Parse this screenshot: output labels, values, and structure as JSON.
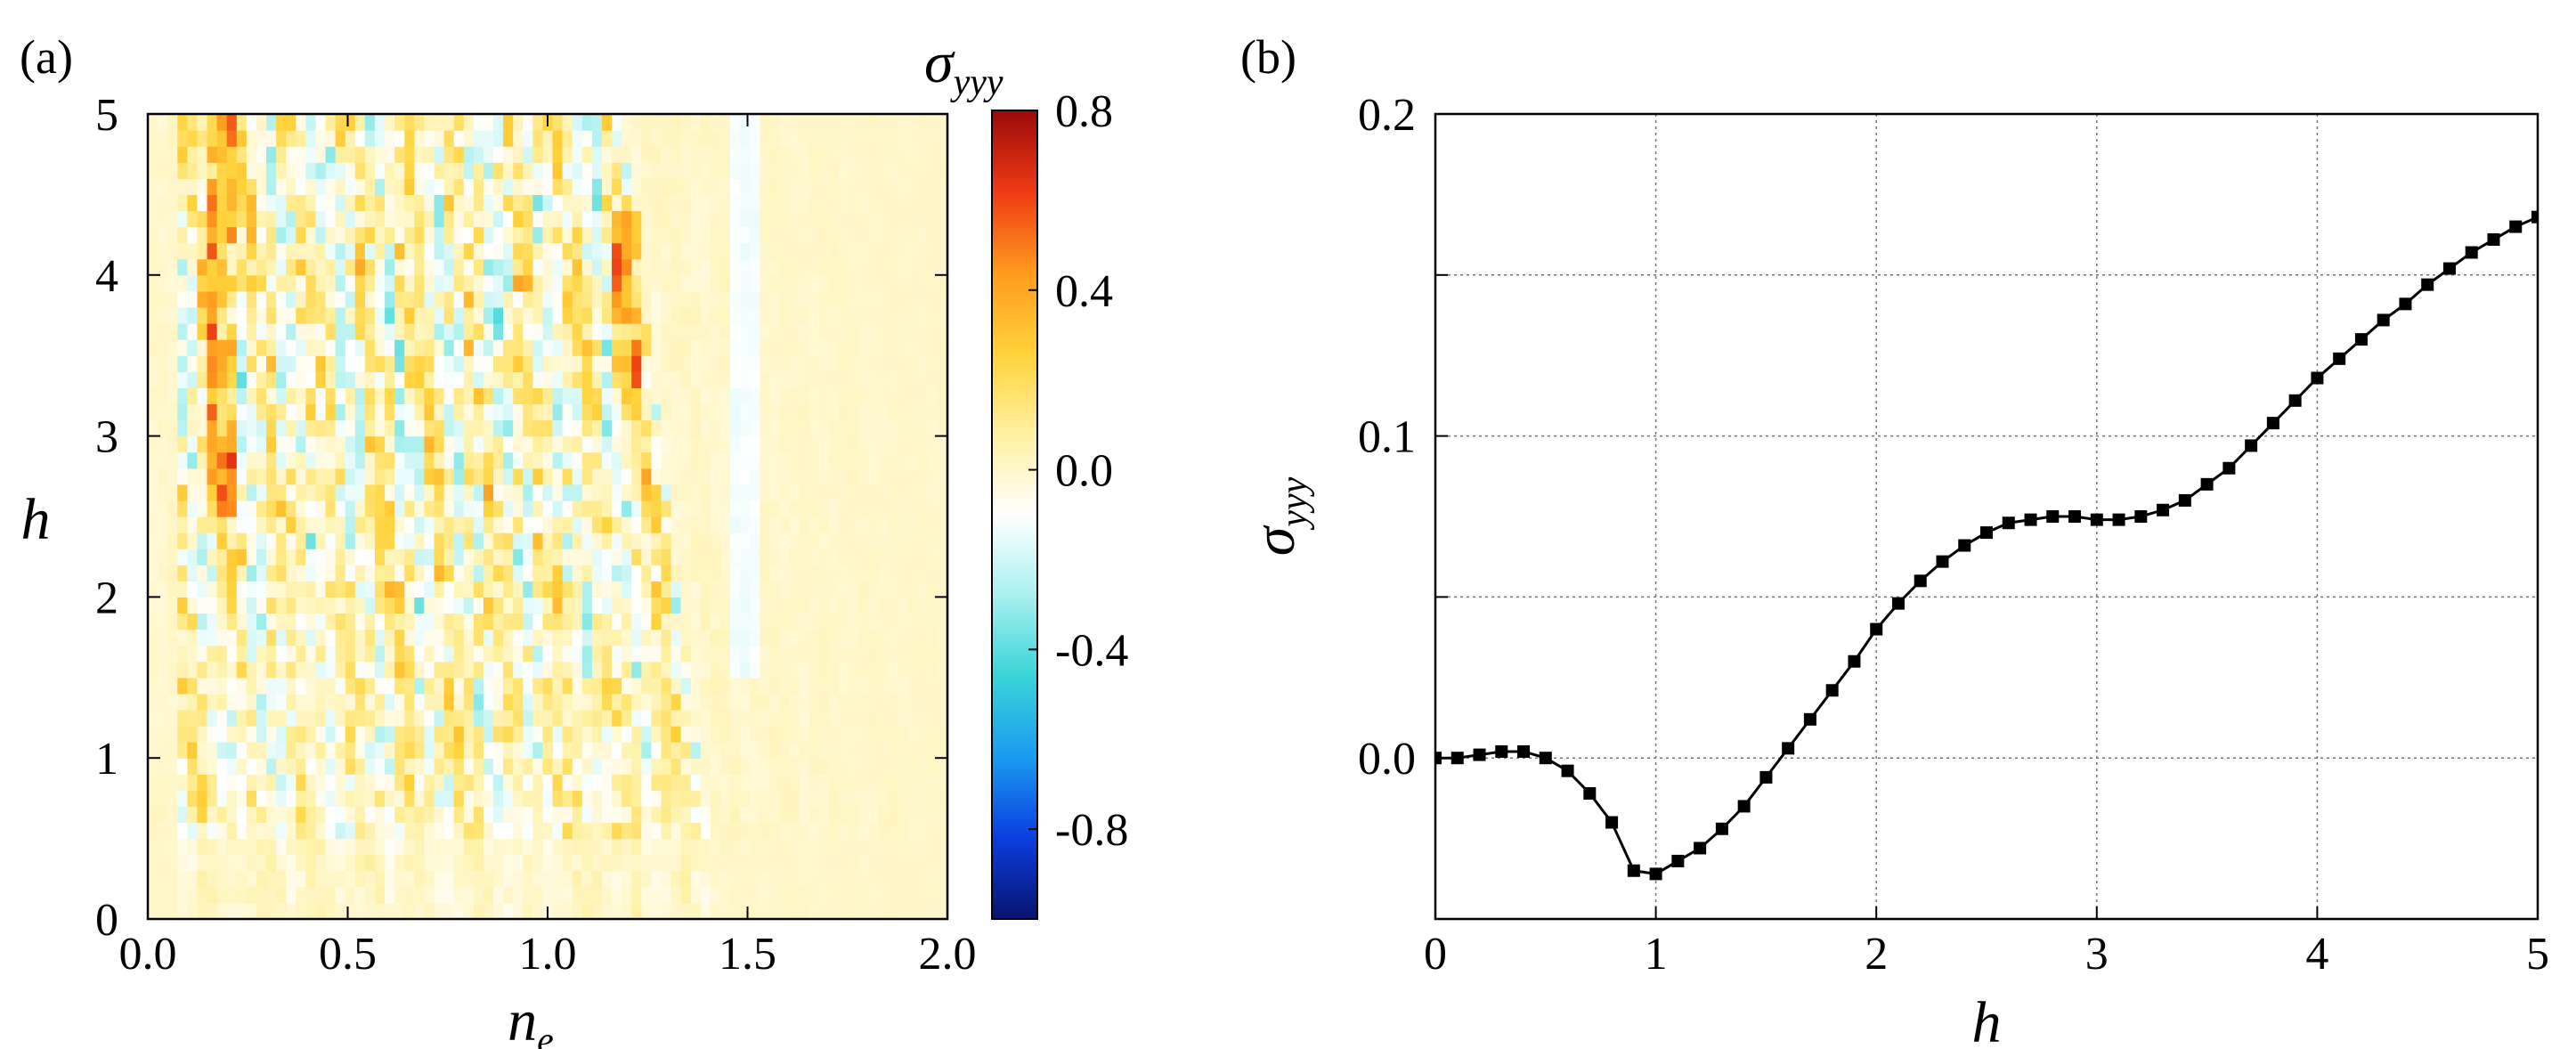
{
  "panel_a_label": "(a)",
  "panel_b_label": "(b)",
  "chart_data": [
    {
      "type": "heatmap",
      "panel": "(a)",
      "xlabel_main": "n",
      "xlabel_sub": "e",
      "ylabel": "h",
      "xlim": [
        0.0,
        2.0
      ],
      "ylim": [
        0,
        5
      ],
      "x_ticks": [
        "0.0",
        "0.5",
        "1.0",
        "1.5",
        "2.0"
      ],
      "y_ticks": [
        "0",
        "1",
        "2",
        "3",
        "4",
        "5"
      ],
      "colorbar_label_main": "σ",
      "colorbar_label_sub": "yyy",
      "colorbar_range": [
        -1.0,
        0.8
      ],
      "colorbar_ticks": [
        "0.8",
        "0.4",
        "0.0",
        "-0.4",
        "-0.8"
      ],
      "colorbar_tick_values": [
        0.8,
        0.4,
        0.0,
        -0.4,
        -0.8
      ],
      "grid": "81 x 50 cells, n_e step 0.025, h step 0.1",
      "color_stops": [
        "#08146e",
        "#0b3ee0",
        "#1a9bf0",
        "#39d4d8",
        "#a8f0ee",
        "#ffffff",
        "#fff0a0",
        "#ffd23a",
        "#ff9a1e",
        "#ee3a14",
        "#9c0a0a"
      ]
    },
    {
      "type": "line",
      "panel": "(b)",
      "xlabel": "h",
      "ylabel_main": "σ",
      "ylabel_sub": "yyy",
      "xlim": [
        0,
        5
      ],
      "ylim": [
        -0.05,
        0.2
      ],
      "x_ticks": [
        "0",
        "1",
        "2",
        "3",
        "4",
        "5"
      ],
      "y_ticks": [
        "0.2",
        "0.1",
        "0.0"
      ],
      "y_tick_values": [
        0.2,
        0.1,
        0.0
      ],
      "grid": true,
      "series": [
        {
          "name": "σyyy(h)",
          "marker": "square",
          "color": "#000000",
          "x": [
            0.0,
            0.1,
            0.2,
            0.3,
            0.4,
            0.5,
            0.6,
            0.7,
            0.8,
            0.9,
            1.0,
            1.1,
            1.2,
            1.3,
            1.4,
            1.5,
            1.6,
            1.7,
            1.8,
            1.9,
            2.0,
            2.1,
            2.2,
            2.3,
            2.4,
            2.5,
            2.6,
            2.7,
            2.8,
            2.9,
            3.0,
            3.1,
            3.2,
            3.3,
            3.4,
            3.5,
            3.6,
            3.7,
            3.8,
            3.9,
            4.0,
            4.1,
            4.2,
            4.3,
            4.4,
            4.5,
            4.6,
            4.7,
            4.8,
            4.9,
            5.0
          ],
          "y": [
            0.0,
            0.0,
            0.001,
            0.002,
            0.002,
            0.0,
            -0.004,
            -0.011,
            -0.02,
            -0.035,
            -0.036,
            -0.032,
            -0.028,
            -0.022,
            -0.015,
            -0.006,
            0.003,
            0.012,
            0.021,
            0.03,
            0.04,
            0.048,
            0.055,
            0.061,
            0.066,
            0.07,
            0.073,
            0.074,
            0.075,
            0.075,
            0.074,
            0.074,
            0.075,
            0.077,
            0.08,
            0.085,
            0.09,
            0.097,
            0.104,
            0.111,
            0.118,
            0.124,
            0.13,
            0.136,
            0.141,
            0.147,
            0.152,
            0.157,
            0.161,
            0.165,
            0.168
          ]
        }
      ]
    }
  ]
}
